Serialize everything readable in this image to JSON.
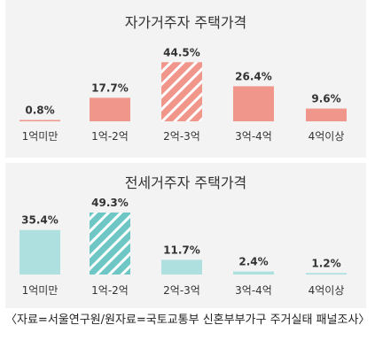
{
  "chart_data": [
    {
      "type": "bar",
      "title": "자가거주자 주택가격",
      "categories": [
        "1억미만",
        "1억-2억",
        "2억-3억",
        "3억-4억",
        "4억이상"
      ],
      "values": [
        0.8,
        17.7,
        44.5,
        26.4,
        9.6
      ],
      "value_labels": [
        "0.8%",
        "17.7%",
        "44.5%",
        "26.4%",
        "9.6%"
      ],
      "highlight_index": 2,
      "colors": {
        "bar": "#f0968a",
        "highlight": "#f0968a",
        "hatch": "#ffffff",
        "baseline": "#d9d9d9"
      },
      "ylim": [
        0,
        50
      ]
    },
    {
      "type": "bar",
      "title": "전세거주자 주택가격",
      "categories": [
        "1억미만",
        "1억-2억",
        "2억-3억",
        "3억-4억",
        "4억이상"
      ],
      "values": [
        35.4,
        49.3,
        11.7,
        2.4,
        1.2
      ],
      "value_labels": [
        "35.4%",
        "49.3%",
        "11.7%",
        "2.4%",
        "1.2%"
      ],
      "highlight_index": 1,
      "colors": {
        "bar": "#aee0df",
        "highlight": "#6fc7c5",
        "hatch": "#ffffff",
        "baseline": "#d9d9d9"
      },
      "ylim": [
        0,
        50
      ]
    }
  ],
  "source_note": "〈자료=서울연구원/원자료=국토교통부 신혼부부가구 주거실태 패널조사〉"
}
